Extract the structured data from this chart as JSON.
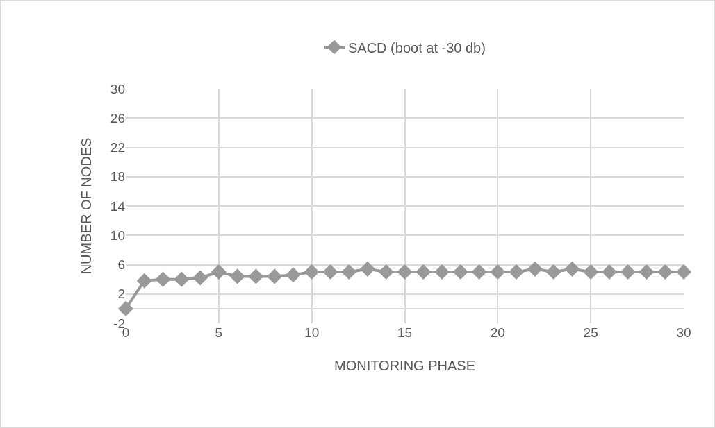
{
  "chart_data": {
    "type": "line",
    "xlabel": "MONITORING PHASE",
    "ylabel": "NUMBER OF NODES",
    "x": [
      0,
      1,
      2,
      3,
      4,
      5,
      6,
      7,
      8,
      9,
      10,
      11,
      12,
      13,
      14,
      15,
      16,
      17,
      18,
      19,
      20,
      21,
      22,
      23,
      24,
      25,
      26,
      27,
      28,
      29,
      30
    ],
    "series": [
      {
        "name": "SACD (boot at -30 db)",
        "color": "#999999",
        "values": [
          0,
          3.8,
          4,
          4,
          4.2,
          5,
          4.4,
          4.4,
          4.4,
          4.6,
          5,
          5,
          5,
          5.4,
          5,
          5,
          5,
          5,
          5,
          5,
          5,
          5,
          5.4,
          5,
          5.4,
          5,
          5,
          5,
          5,
          5,
          5
        ]
      }
    ],
    "xlim": [
      0,
      30
    ],
    "xticks": [
      0,
      5,
      10,
      15,
      20,
      25,
      30
    ],
    "ylim": [
      -2,
      30
    ],
    "yticks": [
      -2,
      2,
      6,
      10,
      14,
      18,
      22,
      26,
      30
    ],
    "grid": true,
    "legend": "top",
    "marker": "diamond",
    "line_style": "solid"
  }
}
